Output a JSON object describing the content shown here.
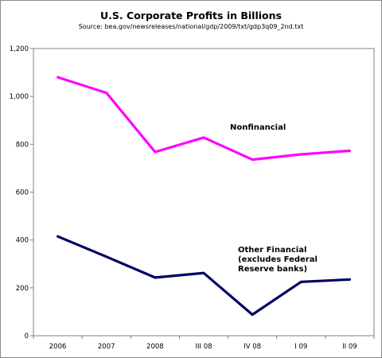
{
  "chart_data": {
    "type": "line",
    "title": "U.S. Corporate Profits in Billions",
    "subtitle": "Source: bea.gov/newsreleases/national/gdp/2009/txt/gdp3q09_2nd.txt",
    "categories": [
      "2006",
      "2007",
      "2008",
      "III 08",
      "IV 08",
      "I 09",
      "II 09"
    ],
    "ylim": [
      0,
      1200
    ],
    "yticks": [
      "0",
      "200",
      "400",
      "600",
      "800",
      "1,000",
      "1,200"
    ],
    "grid": false,
    "series": [
      {
        "name": "Nonfinancial",
        "label_lines": [
          "Nonfinancial"
        ],
        "color": "#ff00ff",
        "values": [
          1080,
          1015,
          768,
          828,
          736,
          758,
          773
        ]
      },
      {
        "name": "Other Financial (excludes Federal Reserve banks)",
        "label_lines": [
          "Other Financial",
          "(excludes Federal",
          "Reserve banks)"
        ],
        "color": "#000066",
        "values": [
          415,
          330,
          243,
          262,
          88,
          225,
          235
        ]
      }
    ]
  }
}
